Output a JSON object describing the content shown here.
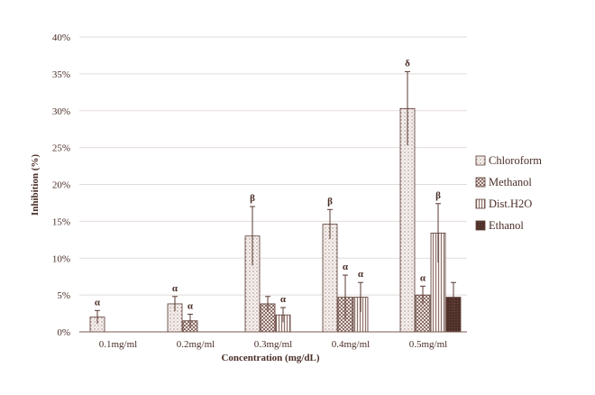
{
  "chart_data": {
    "type": "bar",
    "title": "",
    "xlabel": "Concentration  (mg/dL)",
    "ylabel": "Inhibition (%)",
    "ylim": [
      0,
      40
    ],
    "yticks": [
      "0%",
      "5%",
      "10%",
      "15%",
      "20%",
      "25%",
      "30%",
      "35%",
      "40%"
    ],
    "categories": [
      "0.1mg/ml",
      "0.2mg/ml",
      "0.3mg/ml",
      "0.4mg/ml",
      "0.5mg/ml"
    ],
    "grid": true,
    "legend_position": "right",
    "series": [
      {
        "name": "Chloroform",
        "pattern": "dots",
        "values": [
          2.0,
          3.8,
          13.0,
          14.6,
          30.3
        ],
        "errors": [
          0.9,
          1.0,
          4.0,
          2.0,
          5.0
        ],
        "labels": [
          "α",
          "α",
          "β",
          "β",
          "δ"
        ]
      },
      {
        "name": "Methanol",
        "pattern": "checker",
        "values": [
          null,
          1.5,
          3.8,
          4.7,
          5.0
        ],
        "errors": [
          null,
          0.9,
          1.0,
          3.0,
          1.2
        ],
        "labels": [
          "",
          "α",
          "",
          "α",
          "α"
        ]
      },
      {
        "name": "Dist.H2O",
        "pattern": "vlines",
        "values": [
          null,
          null,
          2.3,
          4.7,
          13.4
        ],
        "errors": [
          null,
          null,
          1.0,
          2.0,
          4.0
        ],
        "labels": [
          "",
          "",
          "α",
          "α",
          "β"
        ]
      },
      {
        "name": "Ethanol",
        "pattern": "dark",
        "values": [
          null,
          null,
          null,
          null,
          4.7
        ],
        "errors": [
          null,
          null,
          null,
          null,
          2.0
        ],
        "labels": [
          "",
          "",
          "",
          "",
          ""
        ]
      }
    ],
    "colors": {
      "axis": "#7a5a52",
      "bar_stroke": "#5a3a32",
      "text": "#4a2e28",
      "grid": "#e2dcda",
      "dark_fill": "#4e3029"
    }
  }
}
